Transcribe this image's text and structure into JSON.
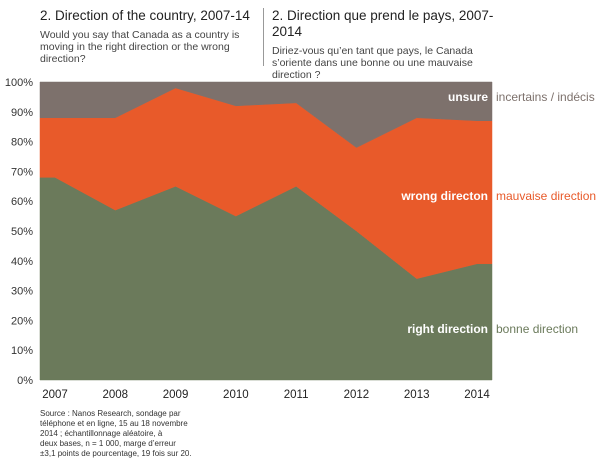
{
  "header": {
    "en_title": "2. Direction of the country, 2007-14",
    "en_question": "Would you say that Canada as a country is moving in the right direction or the wrong direction?",
    "fr_title": "2. Direction que prend le pays, 2007-2014",
    "fr_question": "Diriez-vous qu’en tant que pays, le Canada s’oriente dans une bonne ou une mauvaise direction ?"
  },
  "chart_data": {
    "type": "area",
    "stacked": true,
    "x": [
      "2007",
      "2008",
      "2009",
      "2010",
      "2011",
      "2012",
      "2013",
      "2014"
    ],
    "series": [
      {
        "name_en": "right direction",
        "name_fr": "bonne direction",
        "color": "#6b7a5b",
        "values": [
          68,
          57,
          65,
          55,
          65,
          50,
          34,
          39
        ]
      },
      {
        "name_en": "wrong directon",
        "name_fr": "mauvaise direction",
        "color": "#e85a2a",
        "values": [
          20,
          31,
          33,
          37,
          28,
          28,
          54,
          48
        ]
      },
      {
        "name_en": "unsure",
        "name_fr": "incertains / indécis",
        "color": "#7d716c",
        "values": [
          12,
          12,
          2,
          8,
          7,
          22,
          12,
          13
        ]
      }
    ],
    "ylim": [
      0,
      100
    ],
    "yticks": [
      "0%",
      "10%",
      "20%",
      "30%",
      "40%",
      "50%",
      "60%",
      "70%",
      "80%",
      "90%",
      "100%"
    ]
  },
  "source": {
    "lines": [
      "Source : Nanos Research, sondage par",
      "téléphone et en ligne, 15 au 18 novembre",
      "2014 ; échantillonnage aléatoire, à",
      "deux bases, n = 1 000, marge d’erreur",
      "±3,1 points de pourcentage, 19 fois sur 20."
    ]
  }
}
